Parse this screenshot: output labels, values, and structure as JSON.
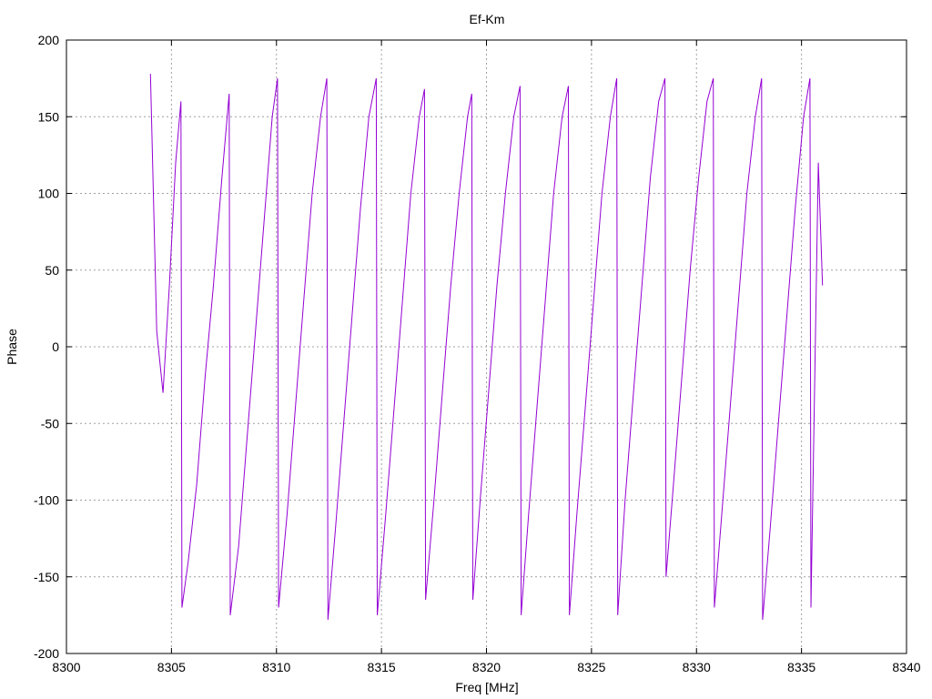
{
  "chart_data": {
    "type": "line",
    "title": "Ef-Km",
    "xlabel": "Freq [MHz]",
    "ylabel": "Phase",
    "xlim": [
      8300,
      8340
    ],
    "ylim": [
      -200,
      200
    ],
    "xticks": [
      8300,
      8305,
      8310,
      8315,
      8320,
      8325,
      8330,
      8335,
      8340
    ],
    "yticks": [
      -200,
      -150,
      -100,
      -50,
      0,
      50,
      100,
      150,
      200
    ],
    "grid": true,
    "legend": "none",
    "series": [
      {
        "color": "#9400d3",
        "x": [
          8304.0,
          8304.3,
          8304.6,
          8304.9,
          8305.2,
          8305.45,
          8305.5,
          8305.8,
          8306.2,
          8306.6,
          8307.0,
          8307.4,
          8307.75,
          8307.8,
          8308.2,
          8308.6,
          8309.0,
          8309.4,
          8309.8,
          8310.05,
          8310.1,
          8310.5,
          8310.9,
          8311.3,
          8311.7,
          8312.1,
          8312.4,
          8312.45,
          8312.8,
          8313.2,
          8313.6,
          8314.0,
          8314.4,
          8314.75,
          8314.8,
          8315.2,
          8315.6,
          8316.0,
          8316.4,
          8316.8,
          8317.05,
          8317.1,
          8317.5,
          8317.9,
          8318.3,
          8318.7,
          8319.1,
          8319.3,
          8319.35,
          8319.7,
          8320.1,
          8320.5,
          8320.9,
          8321.3,
          8321.6,
          8321.65,
          8322.0,
          8322.4,
          8322.8,
          8323.2,
          8323.6,
          8323.9,
          8323.95,
          8324.3,
          8324.7,
          8325.1,
          8325.5,
          8325.9,
          8326.2,
          8326.25,
          8326.6,
          8327.0,
          8327.4,
          8327.8,
          8328.2,
          8328.5,
          8328.55,
          8328.9,
          8329.3,
          8329.7,
          8330.1,
          8330.5,
          8330.8,
          8330.85,
          8331.2,
          8331.6,
          8332.0,
          8332.4,
          8332.8,
          8333.1,
          8333.15,
          8333.5,
          8333.9,
          8334.3,
          8334.7,
          8335.1,
          8335.4,
          8335.45,
          8335.8,
          8336.0
        ],
        "y": [
          178,
          10,
          -30,
          40,
          120,
          160,
          -170,
          -140,
          -90,
          -20,
          40,
          110,
          165,
          -175,
          -130,
          -60,
          10,
          80,
          150,
          175,
          -170,
          -110,
          -40,
          30,
          100,
          150,
          175,
          -178,
          -120,
          -50,
          20,
          90,
          150,
          175,
          -175,
          -110,
          -40,
          30,
          100,
          150,
          168,
          -165,
          -100,
          -30,
          40,
          100,
          150,
          165,
          -165,
          -100,
          -30,
          40,
          100,
          150,
          170,
          -175,
          -110,
          -40,
          30,
          100,
          150,
          170,
          -175,
          -110,
          -40,
          30,
          100,
          150,
          175,
          -175,
          -100,
          -30,
          40,
          110,
          160,
          175,
          -150,
          -90,
          -20,
          50,
          110,
          160,
          175,
          -170,
          -110,
          -40,
          30,
          100,
          150,
          175,
          -178,
          -120,
          -50,
          20,
          90,
          150,
          175,
          -170,
          120,
          40
        ]
      }
    ]
  }
}
